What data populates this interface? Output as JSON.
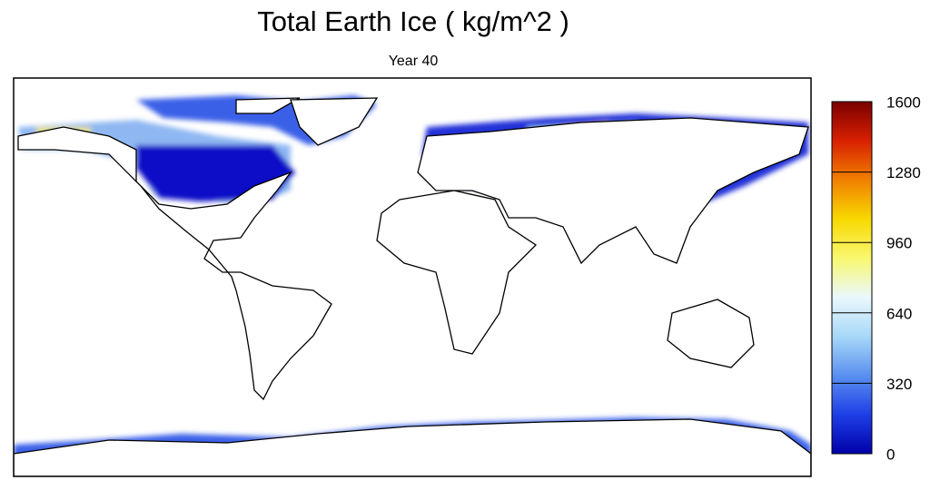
{
  "title": "Total Earth Ice ( kg/m^2 )",
  "subtitle": "Year 40",
  "colorbar": {
    "range": [
      0,
      1600
    ],
    "ticks": [
      0,
      320,
      640,
      960,
      1280,
      1600
    ],
    "colors": [
      "#0000a8",
      "#1f3fe6",
      "#5a90f0",
      "#a8d8f8",
      "#eaf8fc",
      "#f8f870",
      "#f8d800",
      "#f08000",
      "#d82000",
      "#7a0000"
    ]
  }
}
